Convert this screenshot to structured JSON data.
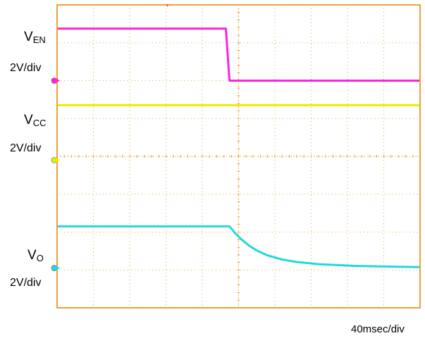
{
  "chart_data": {
    "type": "line",
    "title": "",
    "xlabel": "",
    "ylabel": "",
    "grid": true,
    "divisions": {
      "x": 10,
      "y": 8
    },
    "timebase": "40msec/div",
    "x_unit": "msec",
    "xlim": [
      0,
      400
    ],
    "y_unit": "V",
    "series": [
      {
        "name": "EN",
        "label_main": "V",
        "label_sub": "EN",
        "scale": "2V/div",
        "color": "#ff22dd",
        "ground_div": 6.0,
        "x": [
          0,
          186,
          190,
          400
        ],
        "y": [
          2.75,
          2.75,
          0.0,
          0.0
        ]
      },
      {
        "name": "CC",
        "label_main": "V",
        "label_sub": "CC",
        "scale": "2V/div",
        "color": "#ecec00",
        "ground_div": 3.9,
        "x": [
          0,
          400
        ],
        "y": [
          2.9,
          2.9
        ]
      },
      {
        "name": "O",
        "label_main": "V",
        "label_sub": "O",
        "scale": "2V/div",
        "color": "#22d8e0",
        "ground_div": 1.05,
        "x": [
          0,
          190,
          196,
          204,
          212,
          220,
          232,
          248,
          264,
          290,
          330,
          360,
          400
        ],
        "y": [
          2.2,
          2.2,
          1.85,
          1.48,
          1.17,
          0.93,
          0.67,
          0.45,
          0.32,
          0.2,
          0.11,
          0.08,
          0.05
        ]
      }
    ]
  }
}
